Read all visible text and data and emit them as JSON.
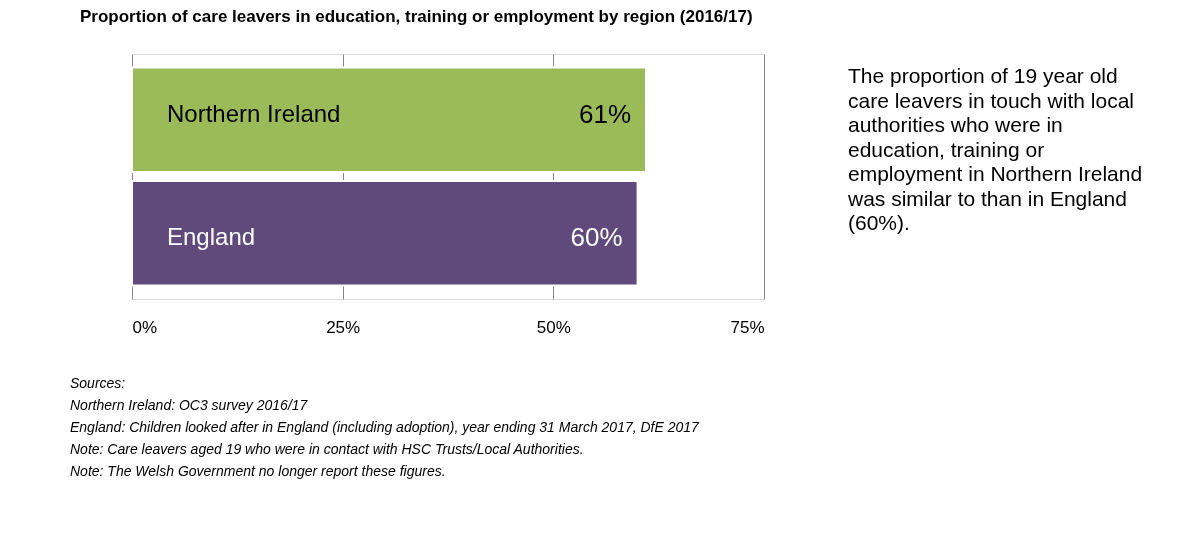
{
  "chart_data": {
    "type": "bar",
    "orientation": "horizontal",
    "title": "Proportion of care leavers in education, training or employment by region (2016/17)",
    "categories": [
      "Northern Ireland",
      "England"
    ],
    "values": [
      61,
      60
    ],
    "colors": [
      "#9bbb59",
      "#604a7b"
    ],
    "value_labels": [
      "61%",
      "60%"
    ],
    "xlim": [
      0,
      75
    ],
    "xticks": [
      {
        "value": 0,
        "label": "0%"
      },
      {
        "value": 25,
        "label": "25%"
      },
      {
        "value": 50,
        "label": "50%"
      },
      {
        "value": 75,
        "label": "75%"
      }
    ],
    "grid": "x",
    "annotations": [
      "The proportion of 19 year old care leavers in touch with local authorities who were in education, training or employment in Northern Ireland was similar to than in England (60%).",
      "Sources:",
      "Northern Ireland: OC3 survey 2016/17",
      "England: Children looked after in England (including adoption), year ending 31 March 2017, DfE 2017",
      "Note: Care leavers aged 19 who were in contact with HSC Trusts/Local Authorities.",
      "Note: The Welsh Government no longer report these figures."
    ]
  }
}
